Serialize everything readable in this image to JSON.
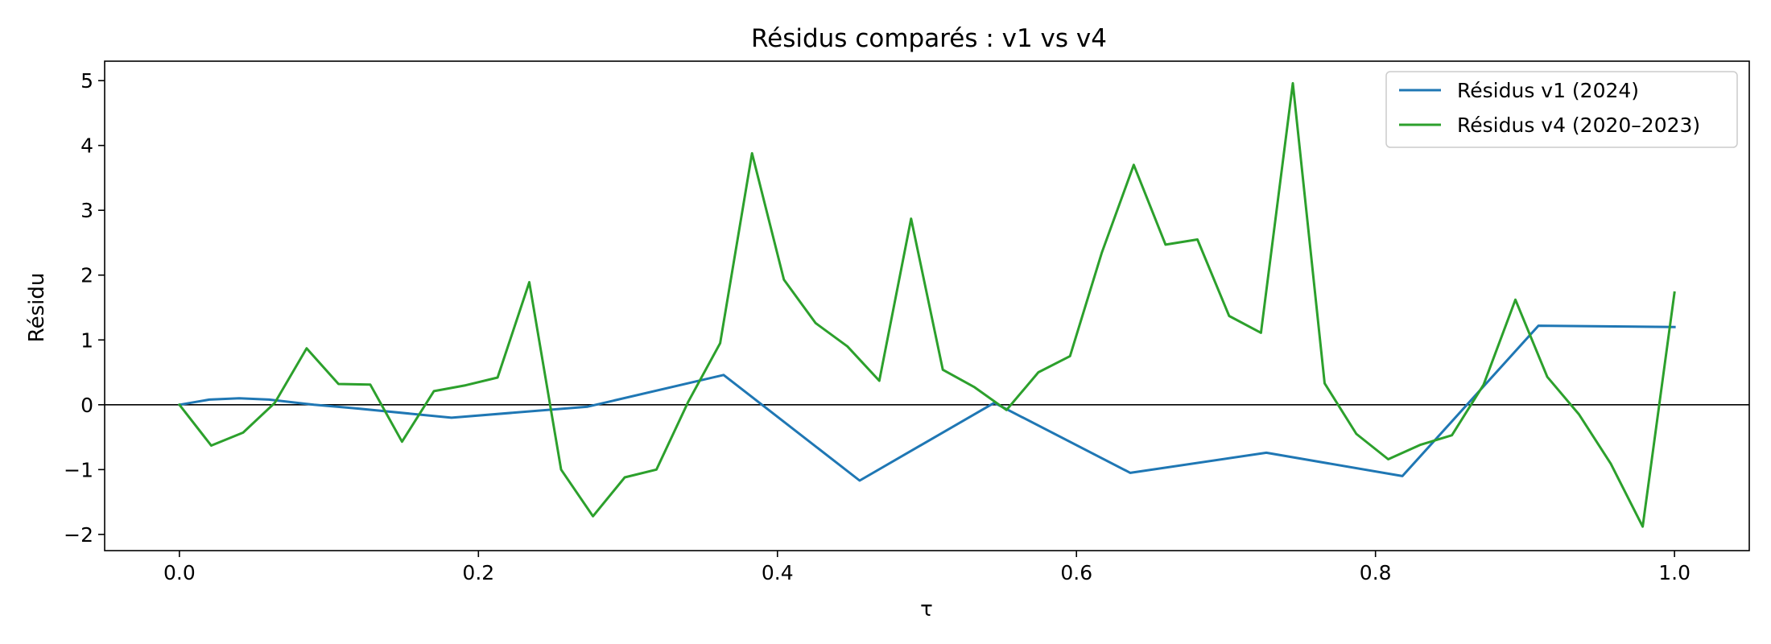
{
  "chart_data": {
    "type": "line",
    "title": "Résidus comparés : v1 vs v4",
    "xlabel": "τ",
    "ylabel": "Résidu",
    "xlim": [
      -0.05,
      1.05
    ],
    "ylim": [
      -2.25,
      5.3
    ],
    "xticks": [
      0.0,
      0.2,
      0.4,
      0.6,
      0.8,
      1.0
    ],
    "xtick_labels": [
      "0.0",
      "0.2",
      "0.4",
      "0.6",
      "0.8",
      "1.0"
    ],
    "yticks": [
      -2,
      -1,
      0,
      1,
      2,
      3,
      4,
      5
    ],
    "ytick_labels": [
      "−2",
      "−1",
      "0",
      "1",
      "2",
      "3",
      "4",
      "5"
    ],
    "grid": false,
    "reference_line_y": 0,
    "legend_position": "top-right",
    "series": [
      {
        "name": "Résidus v1 (2024)",
        "color": "#1f77b4",
        "x": [
          0.0,
          0.02,
          0.04,
          0.06,
          0.09,
          0.12,
          0.182,
          0.273,
          0.364,
          0.455,
          0.545,
          0.636,
          0.727,
          0.818,
          0.909,
          1.0
        ],
        "y": [
          0.0,
          0.08,
          0.1,
          0.08,
          0.0,
          -0.06,
          -0.2,
          -0.03,
          0.46,
          -1.17,
          0.03,
          -1.05,
          -0.74,
          -1.1,
          1.22,
          1.2
        ]
      },
      {
        "name": "Résidus v4 (2020–2023)",
        "color": "#2ca02c",
        "x": [
          0.0,
          0.0213,
          0.0426,
          0.0638,
          0.0851,
          0.1064,
          0.1277,
          0.1489,
          0.1702,
          0.1915,
          0.2128,
          0.234,
          0.2553,
          0.2766,
          0.2979,
          0.3191,
          0.3404,
          0.3617,
          0.383,
          0.4043,
          0.4255,
          0.4468,
          0.4681,
          0.4894,
          0.5106,
          0.5319,
          0.5532,
          0.5745,
          0.5957,
          0.617,
          0.6383,
          0.6596,
          0.6809,
          0.7021,
          0.7234,
          0.7447,
          0.766,
          0.7872,
          0.8085,
          0.8298,
          0.8511,
          0.8723,
          0.8936,
          0.9149,
          0.9362,
          0.9574,
          0.9787,
          1.0
        ],
        "y": [
          0.0,
          -0.63,
          -0.43,
          0.03,
          0.87,
          0.32,
          0.31,
          -0.57,
          0.21,
          0.3,
          0.42,
          1.89,
          -1.0,
          -1.72,
          -1.12,
          -1.0,
          0.05,
          0.95,
          3.88,
          1.93,
          1.26,
          0.9,
          0.37,
          2.87,
          0.54,
          0.27,
          -0.08,
          0.5,
          0.75,
          2.35,
          3.7,
          2.47,
          2.55,
          1.37,
          1.11,
          4.96,
          0.33,
          -0.45,
          -0.84,
          -0.62,
          -0.47,
          0.31,
          1.62,
          0.43,
          -0.15,
          -0.91,
          -1.88,
          1.73
        ]
      }
    ]
  }
}
